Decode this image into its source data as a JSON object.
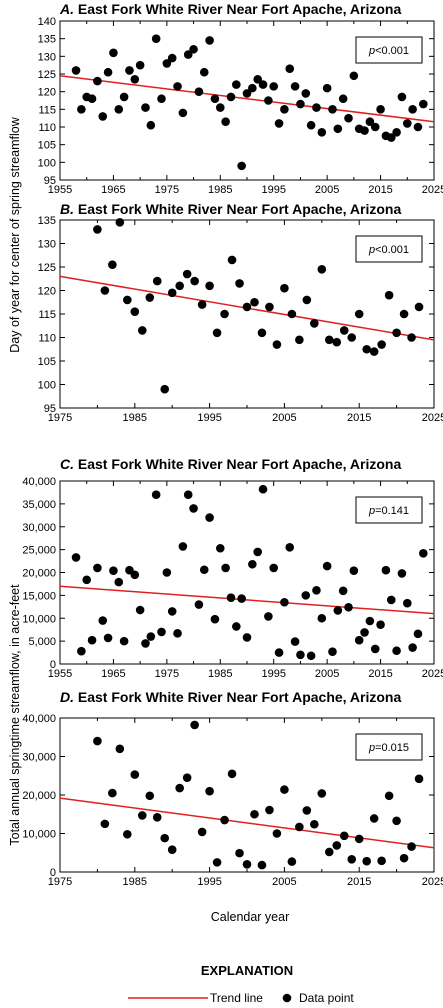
{
  "ylabels": {
    "top": "Day of year for center of spring streamflow",
    "bottom": "Total annual springtime streamflow, in acre-feet"
  },
  "xlabel": "Calendar year",
  "explanation": {
    "heading": "EXPLANATION",
    "trend_label": "Trend line",
    "point_label": "Data point",
    "trend_color": "#e02020"
  },
  "chart_data": [
    {
      "type": "scatter",
      "letter": "A.",
      "title": "East Fork White River Near Fort Apache, Arizona",
      "p_prefix": "p",
      "p_value": "<0.001",
      "xlim": [
        1955,
        2025
      ],
      "ylim": [
        95,
        140
      ],
      "xticks": [
        "1955",
        "1965",
        "1975",
        "1985",
        "1995",
        "2005",
        "2015",
        "2025"
      ],
      "yticks": [
        "95",
        "100",
        "105",
        "110",
        "115",
        "120",
        "125",
        "130",
        "135",
        "140"
      ],
      "trend": [
        [
          1955,
          124.5
        ],
        [
          2025,
          111.5
        ]
      ],
      "points": [
        [
          1958,
          126
        ],
        [
          1959,
          115
        ],
        [
          1960,
          118.5
        ],
        [
          1961,
          118
        ],
        [
          1962,
          123
        ],
        [
          1963,
          113
        ],
        [
          1964,
          125.5
        ],
        [
          1965,
          131
        ],
        [
          1966,
          115
        ],
        [
          1967,
          118.5
        ],
        [
          1968,
          126
        ],
        [
          1969,
          123.5
        ],
        [
          1970,
          127.5
        ],
        [
          1971,
          115.5
        ],
        [
          1972,
          110.5
        ],
        [
          1973,
          135
        ],
        [
          1974,
          118
        ],
        [
          1975,
          128
        ],
        [
          1976,
          129.5
        ],
        [
          1977,
          121.5
        ],
        [
          1978,
          114
        ],
        [
          1979,
          130.5
        ],
        [
          1980,
          132
        ],
        [
          1981,
          120
        ],
        [
          1982,
          125.5
        ],
        [
          1983,
          134.5
        ],
        [
          1984,
          118
        ],
        [
          1985,
          115.5
        ],
        [
          1986,
          111.5
        ],
        [
          1987,
          118.5
        ],
        [
          1988,
          122
        ],
        [
          1989,
          99
        ],
        [
          1990,
          119.5
        ],
        [
          1991,
          121
        ],
        [
          1992,
          123.5
        ],
        [
          1993,
          122
        ],
        [
          1994,
          117.5
        ],
        [
          1995,
          121.5
        ],
        [
          1996,
          111
        ],
        [
          1997,
          115
        ],
        [
          1998,
          126.5
        ],
        [
          1999,
          121.5
        ],
        [
          2000,
          116.5
        ],
        [
          2001,
          119.5
        ],
        [
          2002,
          110.5
        ],
        [
          2003,
          115.5
        ],
        [
          2004,
          108.5
        ],
        [
          2005,
          121
        ],
        [
          2006,
          115
        ],
        [
          2007,
          109.5
        ],
        [
          2008,
          118
        ],
        [
          2009,
          112.5
        ],
        [
          2010,
          124.5
        ],
        [
          2011,
          109.5
        ],
        [
          2012,
          109
        ],
        [
          2013,
          111.5
        ],
        [
          2014,
          110
        ],
        [
          2015,
          115
        ],
        [
          2016,
          107.5
        ],
        [
          2017,
          107
        ],
        [
          2018,
          108.5
        ],
        [
          2019,
          118.5
        ],
        [
          2020,
          111
        ],
        [
          2021,
          115
        ],
        [
          2022,
          110
        ],
        [
          2023,
          116.5
        ]
      ]
    },
    {
      "type": "scatter",
      "letter": "B.",
      "title": "East Fork White River Near Fort Apache, Arizona",
      "p_prefix": "p",
      "p_value": "<0.001",
      "xlim": [
        1975,
        2025
      ],
      "ylim": [
        95,
        135
      ],
      "xticks": [
        "1975",
        "1985",
        "1995",
        "2005",
        "2015",
        "2025"
      ],
      "yticks": [
        "95",
        "100",
        "105",
        "110",
        "115",
        "120",
        "125",
        "130",
        "135"
      ],
      "trend": [
        [
          1975,
          123
        ],
        [
          2025,
          109.5
        ]
      ],
      "points": [
        [
          1980,
          133
        ],
        [
          1981,
          120
        ],
        [
          1982,
          125.5
        ],
        [
          1983,
          134.5
        ],
        [
          1984,
          118
        ],
        [
          1985,
          115.5
        ],
        [
          1986,
          111.5
        ],
        [
          1987,
          118.5
        ],
        [
          1988,
          122
        ],
        [
          1989,
          99
        ],
        [
          1990,
          119.5
        ],
        [
          1991,
          121
        ],
        [
          1992,
          123.5
        ],
        [
          1993,
          122
        ],
        [
          1994,
          117
        ],
        [
          1995,
          121
        ],
        [
          1996,
          111
        ],
        [
          1997,
          115
        ],
        [
          1998,
          126.5
        ],
        [
          1999,
          121.5
        ],
        [
          2000,
          116.5
        ],
        [
          2001,
          117.5
        ],
        [
          2002,
          111
        ],
        [
          2003,
          116.5
        ],
        [
          2004,
          108.5
        ],
        [
          2005,
          120.5
        ],
        [
          2006,
          115
        ],
        [
          2007,
          109.5
        ],
        [
          2008,
          118
        ],
        [
          2009,
          113
        ],
        [
          2010,
          124.5
        ],
        [
          2011,
          109.5
        ],
        [
          2012,
          109
        ],
        [
          2013,
          111.5
        ],
        [
          2014,
          110
        ],
        [
          2015,
          115
        ],
        [
          2016,
          107.5
        ],
        [
          2017,
          107
        ],
        [
          2018,
          108.5
        ],
        [
          2019,
          119
        ],
        [
          2020,
          111
        ],
        [
          2021,
          115
        ],
        [
          2022,
          110
        ],
        [
          2023,
          116.5
        ]
      ]
    },
    {
      "type": "scatter",
      "letter": "C.",
      "title": "East Fork White River Near Fort Apache, Arizona",
      "p_prefix": "p",
      "p_value": "=0.141",
      "xlim": [
        1955,
        2025
      ],
      "ylim": [
        0,
        40000
      ],
      "xticks": [
        "1955",
        "1965",
        "1975",
        "1985",
        "1995",
        "2005",
        "2015",
        "2025"
      ],
      "yticks": [
        "0",
        "5,000",
        "10,000",
        "15,000",
        "20,000",
        "25,000",
        "30,000",
        "35,000",
        "40,000"
      ],
      "trend": [
        [
          1955,
          17000
        ],
        [
          2025,
          11000
        ]
      ],
      "points": [
        [
          1958,
          23300
        ],
        [
          1959,
          2800
        ],
        [
          1960,
          18400
        ],
        [
          1961,
          5200
        ],
        [
          1962,
          21000
        ],
        [
          1963,
          9500
        ],
        [
          1964,
          5700
        ],
        [
          1965,
          20400
        ],
        [
          1966,
          17900
        ],
        [
          1967,
          5000
        ],
        [
          1968,
          20500
        ],
        [
          1969,
          19500
        ],
        [
          1970,
          11800
        ],
        [
          1971,
          4500
        ],
        [
          1972,
          6000
        ],
        [
          1973,
          37000
        ],
        [
          1974,
          7000
        ],
        [
          1975,
          20000
        ],
        [
          1976,
          11500
        ],
        [
          1977,
          6700
        ],
        [
          1978,
          25700
        ],
        [
          1979,
          37000
        ],
        [
          1980,
          34000
        ],
        [
          1981,
          13000
        ],
        [
          1982,
          20600
        ],
        [
          1983,
          32000
        ],
        [
          1984,
          9800
        ],
        [
          1985,
          25300
        ],
        [
          1986,
          21000
        ],
        [
          1987,
          14500
        ],
        [
          1988,
          8200
        ],
        [
          1989,
          14300
        ],
        [
          1990,
          5800
        ],
        [
          1991,
          21800
        ],
        [
          1992,
          24500
        ],
        [
          1993,
          38200
        ],
        [
          1994,
          10400
        ],
        [
          1995,
          21000
        ],
        [
          1996,
          2500
        ],
        [
          1997,
          13500
        ],
        [
          1998,
          25500
        ],
        [
          1999,
          4900
        ],
        [
          2000,
          2000
        ],
        [
          2001,
          15000
        ],
        [
          2002,
          1800
        ],
        [
          2003,
          16100
        ],
        [
          2004,
          10000
        ],
        [
          2005,
          21400
        ],
        [
          2006,
          2700
        ],
        [
          2007,
          11700
        ],
        [
          2008,
          16000
        ],
        [
          2009,
          12400
        ],
        [
          2010,
          20400
        ],
        [
          2011,
          5200
        ],
        [
          2012,
          6900
        ],
        [
          2013,
          9400
        ],
        [
          2014,
          3300
        ],
        [
          2015,
          8600
        ],
        [
          2016,
          20500
        ],
        [
          2017,
          14000
        ],
        [
          2018,
          2900
        ],
        [
          2019,
          19800
        ],
        [
          2020,
          13300
        ],
        [
          2021,
          3600
        ],
        [
          2022,
          6600
        ],
        [
          2023,
          24200
        ]
      ]
    },
    {
      "type": "scatter",
      "letter": "D.",
      "title": "East Fork White River Near Fort Apache, Arizona",
      "p_prefix": "p",
      "p_value": "=0.015",
      "xlim": [
        1975,
        2025
      ],
      "ylim": [
        0,
        40000
      ],
      "xticks": [
        "1975",
        "1985",
        "1995",
        "2005",
        "2015",
        "2025"
      ],
      "yticks": [
        "0",
        "10,000",
        "20,000",
        "30,000",
        "40,000"
      ],
      "trend": [
        [
          1975,
          19200
        ],
        [
          2025,
          6300
        ]
      ],
      "points": [
        [
          1980,
          34000
        ],
        [
          1981,
          12500
        ],
        [
          1982,
          20500
        ],
        [
          1983,
          32000
        ],
        [
          1984,
          9800
        ],
        [
          1985,
          25300
        ],
        [
          1986,
          14700
        ],
        [
          1987,
          19800
        ],
        [
          1988,
          14200
        ],
        [
          1989,
          8800
        ],
        [
          1990,
          5800
        ],
        [
          1991,
          21800
        ],
        [
          1992,
          24500
        ],
        [
          1993,
          38200
        ],
        [
          1994,
          10400
        ],
        [
          1995,
          21000
        ],
        [
          1996,
          2500
        ],
        [
          1997,
          13500
        ],
        [
          1998,
          25500
        ],
        [
          1999,
          4900
        ],
        [
          2000,
          2000
        ],
        [
          2001,
          15000
        ],
        [
          2002,
          1800
        ],
        [
          2003,
          16100
        ],
        [
          2004,
          10000
        ],
        [
          2005,
          21400
        ],
        [
          2006,
          2700
        ],
        [
          2007,
          11700
        ],
        [
          2008,
          16000
        ],
        [
          2009,
          12400
        ],
        [
          2010,
          20400
        ],
        [
          2011,
          5200
        ],
        [
          2012,
          6900
        ],
        [
          2013,
          9400
        ],
        [
          2014,
          3300
        ],
        [
          2015,
          8600
        ],
        [
          2016,
          2800
        ],
        [
          2017,
          13900
        ],
        [
          2018,
          2900
        ],
        [
          2019,
          19800
        ],
        [
          2020,
          13300
        ],
        [
          2021,
          3600
        ],
        [
          2022,
          6600
        ],
        [
          2023,
          24200
        ]
      ]
    }
  ]
}
